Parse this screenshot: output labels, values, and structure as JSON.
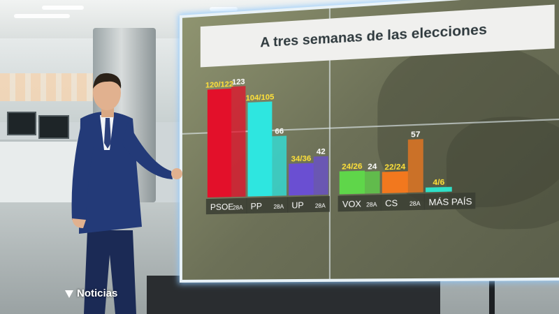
{
  "broadcast": {
    "logo_text": "Noticias"
  },
  "chart_data": {
    "type": "bar",
    "title": "A tres semanas de las elecciones",
    "categories": [
      "PSOE",
      "PP",
      "UP",
      "VOX",
      "CS",
      "MÁS PAÍS"
    ],
    "series": [
      {
        "values": [
          121,
          104.5,
          35,
          25,
          23,
          5
        ],
        "labels": [
          "120/122",
          "104/105",
          "34/36",
          "24/26",
          "22/24",
          "4/6"
        ]
      },
      {
        "values": [
          123,
          66,
          42,
          24,
          57,
          null
        ],
        "labels": [
          "123",
          "66",
          "42",
          "24",
          "57",
          ""
        ]
      }
    ],
    "previous_tag": "28A",
    "ylim": [
      0,
      130
    ],
    "grid": false,
    "legend": "none",
    "colors": {
      "PSOE": "#e3102a",
      "PP": "#2ee6e0",
      "UP": "#6a4fd2",
      "VOX": "#5fd64a",
      "CS": "#f2781e",
      "MÁS PAÍS": "#2fe0c8"
    },
    "label_colors": {
      "PSOE": "#ffe13a",
      "PP": "#ffe13a",
      "UP": "#ffe13a",
      "VOX": "#ffe13a",
      "CS": "#ffe13a",
      "MÁS PAÍS": "#ffe13a"
    }
  }
}
